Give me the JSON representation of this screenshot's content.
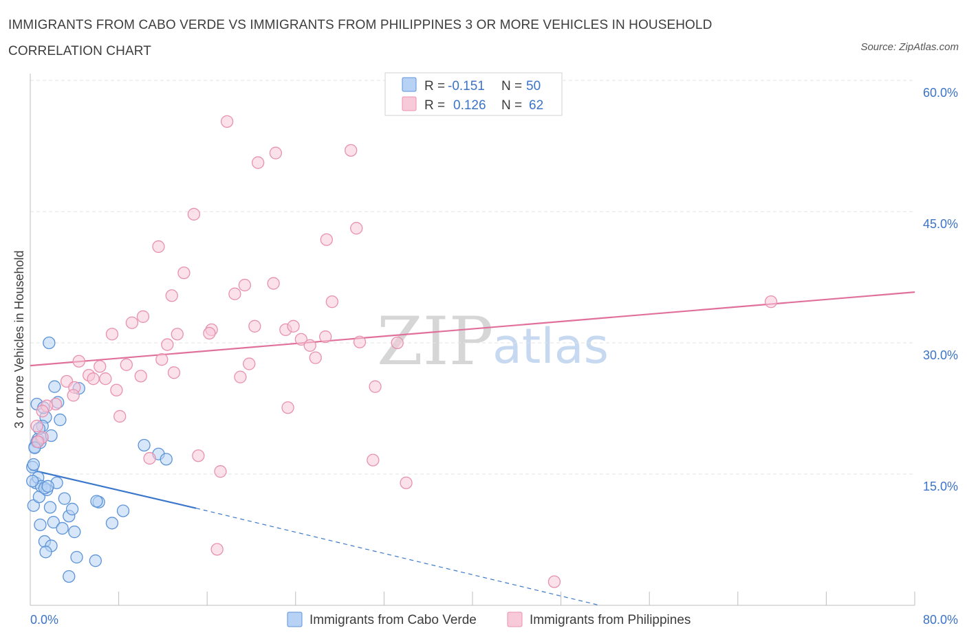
{
  "header": {
    "title": "IMMIGRANTS FROM CABO VERDE VS IMMIGRANTS FROM PHILIPPINES 3 OR MORE VEHICLES IN HOUSEHOLD CORRELATION CHART",
    "source": "Source: ZipAtlas.com"
  },
  "legend_box": {
    "row1": {
      "r_label": "R =",
      "r_value": "-0.151",
      "n_label": "N =",
      "n_value": "50"
    },
    "row2": {
      "r_label": "R =",
      "r_value": "0.126",
      "n_label": "N =",
      "n_value": "62"
    }
  },
  "watermark": {
    "zip": "ZIP",
    "atlas": "atlas"
  },
  "colors": {
    "blue_fill": "#b7d2f4",
    "blue_stroke": "#5b93d8",
    "blue_line": "#3b78cc",
    "pink_fill": "#f8c9d8",
    "pink_stroke": "#e891ae",
    "pink_line": "#e0709a",
    "tick_text": "#3b73c8",
    "grid": "#e3e3e3"
  },
  "chart_data": {
    "type": "scatter",
    "title": "IMMIGRANTS FROM CABO VERDE VS IMMIGRANTS FROM PHILIPPINES 3 OR MORE VEHICLES IN HOUSEHOLD CORRELATION CHART",
    "xlabel": "",
    "ylabel": "3 or more Vehicles in Household",
    "xlim": [
      0,
      80
    ],
    "ylim": [
      0,
      60
    ],
    "x_tick_labels": [
      "0.0%",
      "80.0%"
    ],
    "y_ticks": [
      15,
      30,
      45,
      60
    ],
    "y_tick_labels": [
      "15.0%",
      "30.0%",
      "45.0%",
      "60.0%"
    ],
    "grid": true,
    "legend_position": "bottom-center",
    "series": [
      {
        "name": "Immigrants from Cabo Verde",
        "color": "#5b93d8",
        "r": -0.151,
        "n": 50,
        "trend": {
          "x0": 0,
          "y0": 15.5,
          "x1": 15,
          "y1": 11.1,
          "dashed_to_x": 51.5,
          "dashed_to_y": 0
        },
        "points": [
          [
            0.2,
            15.8
          ],
          [
            0.4,
            18.1
          ],
          [
            0.6,
            23.0
          ],
          [
            0.9,
            18.6
          ],
          [
            1.4,
            21.5
          ],
          [
            1.7,
            30.0
          ],
          [
            2.2,
            25.0
          ],
          [
            2.5,
            23.2
          ],
          [
            2.7,
            21.2
          ],
          [
            1.1,
            20.5
          ],
          [
            0.3,
            11.4
          ],
          [
            0.5,
            14.0
          ],
          [
            0.7,
            14.6
          ],
          [
            0.8,
            12.4
          ],
          [
            1.0,
            13.6
          ],
          [
            1.2,
            22.6
          ],
          [
            1.5,
            13.2
          ],
          [
            1.8,
            11.2
          ],
          [
            2.1,
            9.5
          ],
          [
            2.4,
            14.0
          ],
          [
            2.9,
            8.8
          ],
          [
            3.1,
            12.2
          ],
          [
            3.5,
            10.2
          ],
          [
            3.8,
            11.0
          ],
          [
            4.0,
            8.4
          ],
          [
            4.2,
            5.5
          ],
          [
            4.4,
            24.8
          ],
          [
            1.3,
            7.3
          ],
          [
            1.9,
            6.8
          ],
          [
            3.5,
            3.3
          ],
          [
            5.9,
            5.1
          ],
          [
            0.9,
            9.2
          ],
          [
            0.2,
            14.2
          ],
          [
            0.3,
            16.1
          ],
          [
            6.2,
            11.8
          ],
          [
            7.4,
            9.4
          ],
          [
            8.4,
            10.8
          ],
          [
            10.3,
            18.3
          ],
          [
            11.6,
            17.3
          ],
          [
            12.3,
            16.7
          ],
          [
            0.7,
            19.0
          ],
          [
            1.0,
            19.1
          ],
          [
            0.6,
            18.7
          ],
          [
            0.4,
            18.0
          ],
          [
            1.9,
            19.4
          ],
          [
            0.8,
            20.2
          ],
          [
            1.3,
            13.4
          ],
          [
            1.6,
            13.6
          ],
          [
            6.0,
            11.9
          ],
          [
            1.4,
            6.1
          ]
        ]
      },
      {
        "name": "Immigrants from Philippines",
        "color": "#e891ae",
        "r": 0.126,
        "n": 62,
        "trend": {
          "x0": 0,
          "y0": 27.4,
          "x1": 80,
          "y1": 35.8
        },
        "points": [
          [
            17.8,
            55.3
          ],
          [
            20.6,
            50.6
          ],
          [
            22.2,
            51.7
          ],
          [
            29.0,
            52.0
          ],
          [
            14.8,
            44.7
          ],
          [
            11.6,
            41.0
          ],
          [
            26.8,
            41.8
          ],
          [
            29.5,
            43.1
          ],
          [
            13.9,
            38.0
          ],
          [
            12.8,
            35.4
          ],
          [
            22.0,
            36.8
          ],
          [
            19.4,
            36.6
          ],
          [
            18.5,
            35.6
          ],
          [
            27.3,
            34.7
          ],
          [
            67.0,
            34.7
          ],
          [
            10.2,
            33.0
          ],
          [
            9.2,
            32.3
          ],
          [
            16.4,
            31.5
          ],
          [
            20.3,
            31.9
          ],
          [
            23.1,
            31.5
          ],
          [
            23.8,
            31.9
          ],
          [
            26.7,
            30.7
          ],
          [
            7.4,
            31.0
          ],
          [
            13.3,
            31.0
          ],
          [
            16.2,
            31.1
          ],
          [
            24.5,
            30.4
          ],
          [
            12.4,
            29.8
          ],
          [
            25.3,
            29.7
          ],
          [
            29.8,
            30.1
          ],
          [
            33.2,
            30.0
          ],
          [
            25.8,
            28.3
          ],
          [
            11.9,
            28.1
          ],
          [
            4.4,
            27.9
          ],
          [
            8.7,
            27.5
          ],
          [
            6.3,
            27.3
          ],
          [
            19.8,
            27.6
          ],
          [
            13.0,
            26.6
          ],
          [
            5.3,
            26.3
          ],
          [
            10.0,
            26.2
          ],
          [
            3.3,
            25.6
          ],
          [
            5.7,
            25.9
          ],
          [
            6.8,
            25.9
          ],
          [
            19.0,
            26.1
          ],
          [
            4.0,
            24.9
          ],
          [
            7.8,
            24.6
          ],
          [
            31.2,
            25.0
          ],
          [
            3.9,
            24.0
          ],
          [
            2.3,
            23.0
          ],
          [
            1.5,
            22.8
          ],
          [
            1.1,
            22.2
          ],
          [
            23.3,
            22.6
          ],
          [
            8.1,
            21.6
          ],
          [
            0.6,
            20.5
          ],
          [
            1.1,
            19.2
          ],
          [
            0.7,
            18.7
          ],
          [
            15.2,
            17.1
          ],
          [
            10.8,
            16.8
          ],
          [
            31.0,
            16.6
          ],
          [
            17.2,
            15.3
          ],
          [
            34.0,
            14.0
          ],
          [
            16.9,
            6.4
          ],
          [
            47.4,
            2.7
          ]
        ]
      }
    ]
  }
}
